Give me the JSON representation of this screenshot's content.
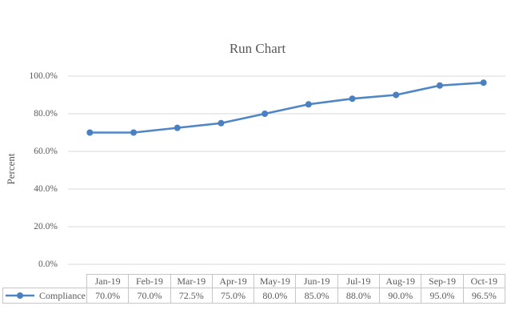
{
  "title": "Run Chart",
  "colors": {
    "line": "#4f86c6",
    "marker": "#4a7fc0",
    "grid": "#d9d9d9",
    "table_border": "#c6c6c6",
    "text": "#595959"
  },
  "y_axis": {
    "label": "Percent",
    "ticks": [
      {
        "label": "100.0%",
        "value": 100
      },
      {
        "label": "80.0%",
        "value": 80
      },
      {
        "label": "60.0%",
        "value": 60
      },
      {
        "label": "40.0%",
        "value": 40
      },
      {
        "label": "20.0%",
        "value": 20
      },
      {
        "label": "0.0%",
        "value": 0
      }
    ]
  },
  "table": {
    "series_label": "Compliance",
    "headers": [
      "Jan-19",
      "Feb-19",
      "Mar-19",
      "Apr-19",
      "May-19",
      "Jun-19",
      "Jul-19",
      "Aug-19",
      "Sep-19",
      "Oct-19"
    ],
    "values": [
      "70.0%",
      "70.0%",
      "72.5%",
      "75.0%",
      "80.0%",
      "85.0%",
      "88.0%",
      "90.0%",
      "95.0%",
      "96.5%"
    ]
  },
  "chart_data": {
    "type": "line",
    "title": "Run Chart",
    "xlabel": "",
    "ylabel": "Percent",
    "categories": [
      "Jan-19",
      "Feb-19",
      "Mar-19",
      "Apr-19",
      "May-19",
      "Jun-19",
      "Jul-19",
      "Aug-19",
      "Sep-19",
      "Oct-19"
    ],
    "series": [
      {
        "name": "Compliance",
        "values": [
          70.0,
          70.0,
          72.5,
          75.0,
          80.0,
          85.0,
          88.0,
          90.0,
          95.0,
          96.5
        ]
      }
    ],
    "ylim": [
      0,
      100
    ],
    "ytick_step": 20,
    "unit": "%",
    "grid": "horizontal-gridlines-on",
    "marker": "circle",
    "legend_position": "data-table-left"
  }
}
